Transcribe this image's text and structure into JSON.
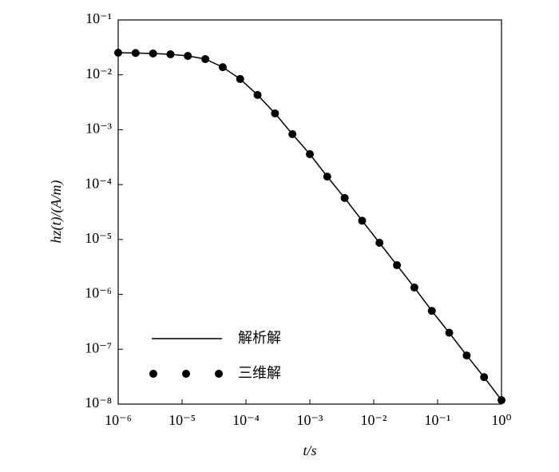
{
  "chart_data": {
    "type": "line",
    "xlabel": "t/s",
    "ylabel": "hz(t)/(A/m)",
    "xlog": true,
    "ylog": true,
    "xlim": [
      1e-06,
      1
    ],
    "ylim": [
      1e-08,
      0.1
    ],
    "xticks": [
      {
        "value": 1e-06,
        "label": "10⁻⁶"
      },
      {
        "value": 1e-05,
        "label": "10⁻⁵"
      },
      {
        "value": 0.0001,
        "label": "10⁻⁴"
      },
      {
        "value": 0.001,
        "label": "10⁻³"
      },
      {
        "value": 0.01,
        "label": "10⁻²"
      },
      {
        "value": 0.1,
        "label": "10⁻¹"
      },
      {
        "value": 1,
        "label": "10⁰"
      }
    ],
    "yticks": [
      {
        "value": 1e-08,
        "label": "10⁻⁸"
      },
      {
        "value": 1e-07,
        "label": "10⁻⁷"
      },
      {
        "value": 1e-06,
        "label": "10⁻⁶"
      },
      {
        "value": 1e-05,
        "label": "10⁻⁵"
      },
      {
        "value": 0.0001,
        "label": "10⁻⁴"
      },
      {
        "value": 0.001,
        "label": "10⁻³"
      },
      {
        "value": 0.01,
        "label": "10⁻²"
      },
      {
        "value": 0.1,
        "label": "10⁻¹"
      }
    ],
    "x": [
      1e-06,
      1.87e-06,
      3.51e-06,
      6.58e-06,
      1.23e-05,
      2.31e-05,
      4.33e-05,
      8.11e-05,
      0.000152,
      0.000285,
      0.000534,
      0.001,
      0.00187,
      0.00351,
      0.00658,
      0.0123,
      0.0231,
      0.0433,
      0.0811,
      0.152,
      0.285,
      0.534,
      1
    ],
    "series": [
      {
        "name": "解析解",
        "color": "#000000",
        "style": "line",
        "values": [
          0.0253,
          0.025,
          0.0245,
          0.0237,
          0.0221,
          0.0194,
          0.0138,
          0.0084,
          0.0043,
          0.00198,
          0.00083,
          0.000359,
          0.00014,
          5.7e-05,
          2.2e-05,
          8.7e-06,
          3.4e-06,
          1.33e-06,
          5e-07,
          2e-07,
          7.7e-08,
          3.1e-08,
          1.18e-08
        ]
      },
      {
        "name": "三维解",
        "color": "#000000",
        "style": "markers",
        "values": [
          0.0253,
          0.025,
          0.0245,
          0.0237,
          0.0221,
          0.0194,
          0.0138,
          0.0084,
          0.0043,
          0.00198,
          0.00083,
          0.000359,
          0.00014,
          5.7e-05,
          2.2e-05,
          8.7e-06,
          3.4e-06,
          1.33e-06,
          5e-07,
          2e-07,
          7.7e-08,
          3.1e-08,
          1.18e-08
        ]
      }
    ]
  }
}
